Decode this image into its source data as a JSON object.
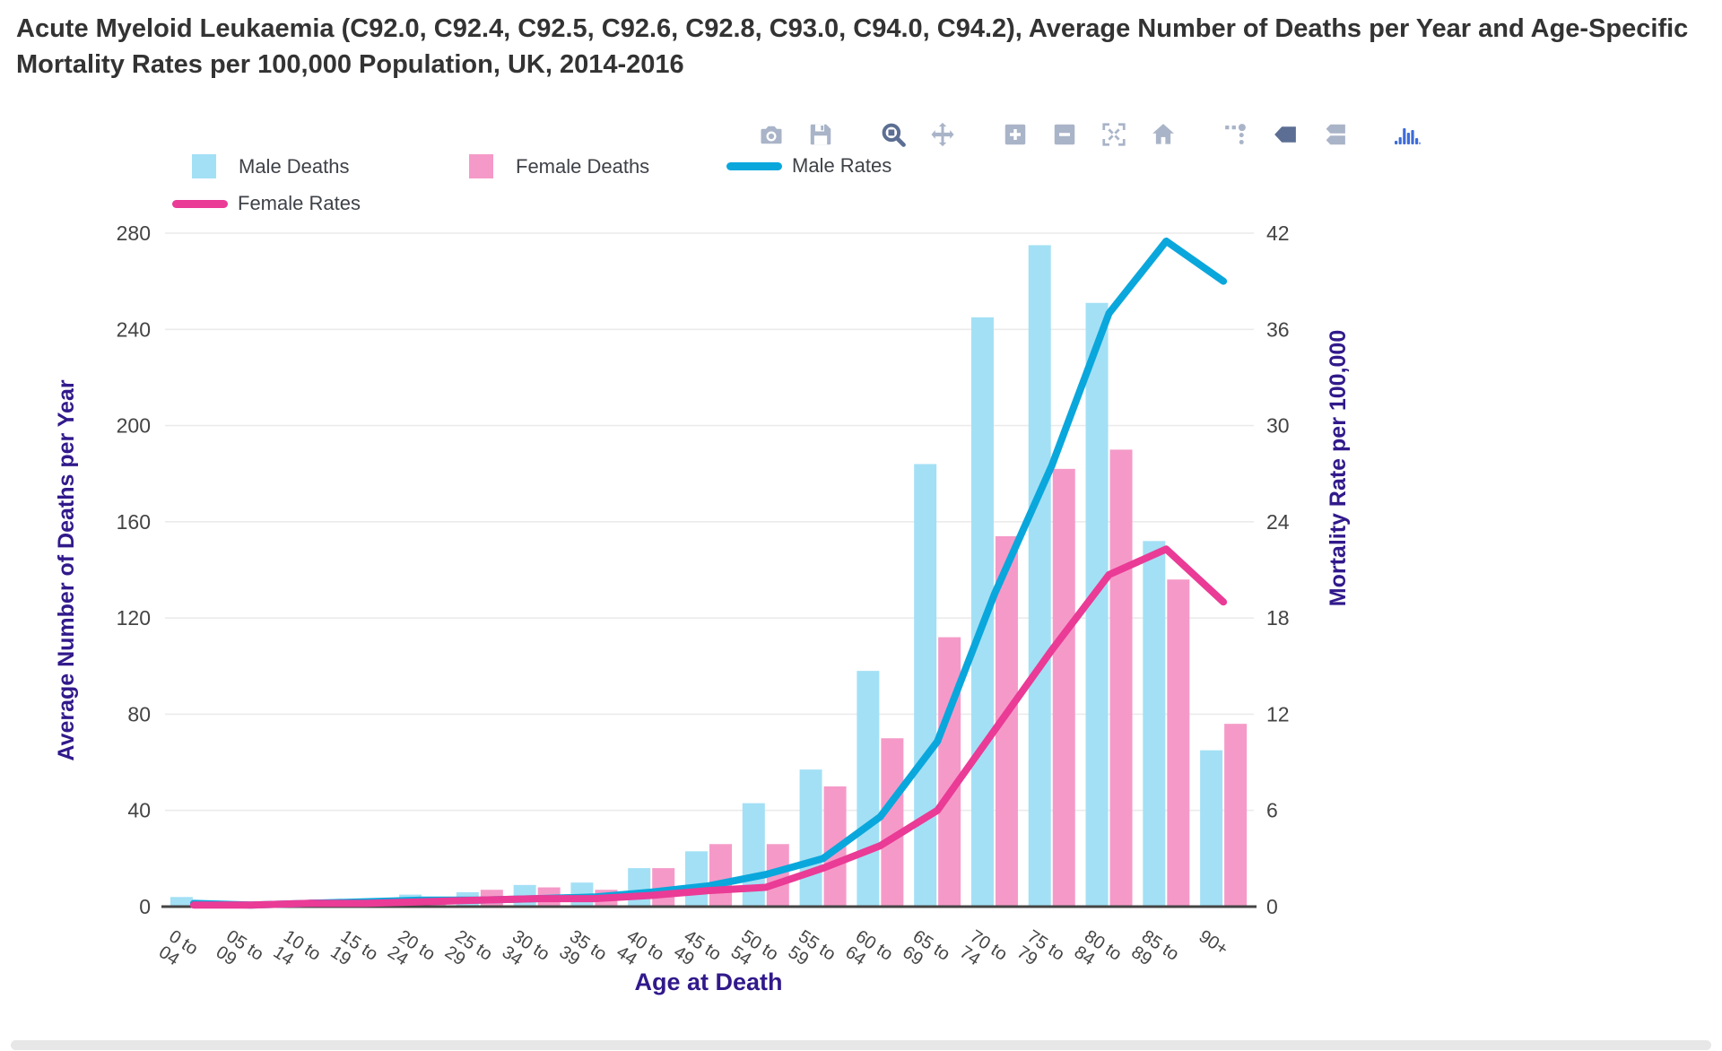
{
  "page": {
    "title": "Acute Myeloid Leukaemia (C92.0, C92.4, C92.5, C92.6, C92.8, C93.0, C94.0, C94.2), Average Number of Deaths per Year and Age-Specific Mortality Rates per 100,000 Population, UK, 2014-2016"
  },
  "modebar": {
    "tools": [
      "download-plot-camera",
      "save-plot",
      "zoom",
      "pan",
      "zoom-in",
      "zoom-out",
      "autoscale",
      "reset-axes",
      "toggle-spike-lines",
      "show-closest-on-hover",
      "compare-on-hover",
      "plotly-logo"
    ],
    "active_tools": [
      "zoom",
      "show-closest-on-hover"
    ]
  },
  "legend": {
    "items": [
      {
        "label": "Male Deaths",
        "type": "bar",
        "color": "#A3E0F5"
      },
      {
        "label": "Female Deaths",
        "type": "bar",
        "color": "#F59AC8"
      },
      {
        "label": "Male Rates",
        "type": "line",
        "color": "#0AA7DC"
      },
      {
        "label": "Female Rates",
        "type": "line",
        "color": "#EA3B96"
      }
    ]
  },
  "colors": {
    "axis_title": "#31198B",
    "tick_label": "#444444",
    "gridline": "#EBEBEB",
    "axis_line": "#444444"
  },
  "chart_data": {
    "type": "bar+line",
    "title": "Acute Myeloid Leukaemia, Average Number of Deaths per Year and Age-Specific Mortality Rates per 100,000 Population, UK, 2014-2016",
    "categories": [
      "0 to 04",
      "05 to 09",
      "10 to 14",
      "15 to 19",
      "20 to 24",
      "25 to 29",
      "30 to 34",
      "35 to 39",
      "40 to 44",
      "45 to 49",
      "50 to 54",
      "55 to 59",
      "60 to 64",
      "65 to 69",
      "70 to 74",
      "75 to 79",
      "80 to 84",
      "85 to 89",
      "90+"
    ],
    "series": [
      {
        "name": "Male Deaths",
        "type": "bar",
        "axis": "left",
        "color": "#A3E0F5",
        "values": [
          4,
          2,
          2,
          3,
          5,
          6,
          9,
          10,
          16,
          23,
          43,
          57,
          98,
          184,
          245,
          275,
          251,
          152,
          65
        ]
      },
      {
        "name": "Female Deaths",
        "type": "bar",
        "axis": "left",
        "color": "#F59AC8",
        "values": [
          2,
          2,
          3,
          3,
          4,
          7,
          8,
          7,
          16,
          26,
          26,
          50,
          70,
          112,
          154,
          182,
          190,
          136,
          76
        ]
      },
      {
        "name": "Male Rates",
        "type": "line",
        "axis": "right",
        "color": "#0AA7DC",
        "values": [
          0.2,
          0.1,
          0.2,
          0.3,
          0.4,
          0.4,
          0.5,
          0.6,
          0.9,
          1.3,
          2.0,
          3.0,
          5.6,
          10.3,
          19.5,
          27.5,
          37.0,
          41.5,
          39.0
        ]
      },
      {
        "name": "Female Rates",
        "type": "line",
        "axis": "right",
        "color": "#EA3B96",
        "values": [
          0.1,
          0.1,
          0.2,
          0.2,
          0.3,
          0.4,
          0.5,
          0.5,
          0.7,
          1.0,
          1.2,
          2.4,
          3.8,
          6.0,
          11.0,
          16.0,
          20.7,
          22.3,
          19.0
        ]
      }
    ],
    "xlabel": "Age at Death",
    "ylabel_left": "Average Number of Deaths per Year",
    "ylabel_right": "Mortality Rate per 100,000",
    "ylim_left": [
      0,
      280
    ],
    "yticks_left": [
      0,
      40,
      80,
      120,
      160,
      200,
      240,
      280
    ],
    "ylim_right": [
      0,
      42
    ],
    "yticks_right": [
      0,
      6,
      12,
      18,
      24,
      30,
      36,
      42
    ],
    "grid": true,
    "legend_position": "top-left"
  }
}
